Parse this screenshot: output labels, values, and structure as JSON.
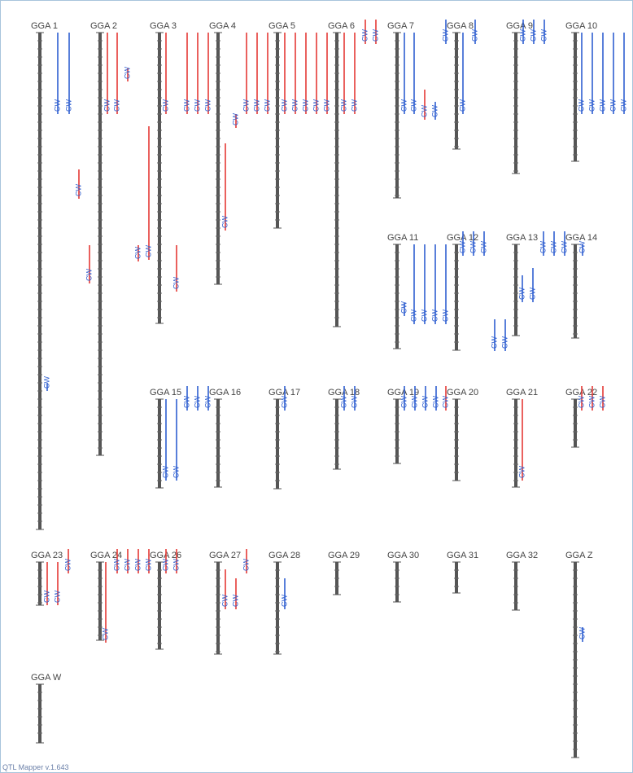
{
  "colors": {
    "qtl_red": "#e53935",
    "qtl_blue": "#2f5fd0",
    "chromosome": "#555555",
    "label": "#444444",
    "footer": "#6a7fa8"
  },
  "chromosomes": [
    {
      "label": "GGA 1"
    },
    {
      "label": "GGA 2"
    },
    {
      "label": "GGA 3"
    },
    {
      "label": "GGA 4"
    },
    {
      "label": "GGA 5"
    },
    {
      "label": "GGA 6"
    },
    {
      "label": "GGA 7"
    },
    {
      "label": "GGA 8"
    },
    {
      "label": "GGA 9"
    },
    {
      "label": "GGA 10"
    },
    {
      "label": "GGA 11"
    },
    {
      "label": "GGA 12"
    },
    {
      "label": "GGA 13"
    },
    {
      "label": "GGA 14"
    },
    {
      "label": "GGA 15"
    },
    {
      "label": "GGA 16"
    },
    {
      "label": "GGA 17"
    },
    {
      "label": "GGA 18"
    },
    {
      "label": "GGA 19"
    },
    {
      "label": "GGA 20"
    },
    {
      "label": "GGA 21"
    },
    {
      "label": "GGA 22"
    },
    {
      "label": "GGA 23"
    },
    {
      "label": "GGA 24"
    },
    {
      "label": "GGA 26"
    },
    {
      "label": "GGA 27"
    },
    {
      "label": "GGA 28"
    },
    {
      "label": "GGA 29"
    },
    {
      "label": "GGA 30"
    },
    {
      "label": "GGA 31"
    },
    {
      "label": "GGA 32"
    },
    {
      "label": "GGA Z"
    },
    {
      "label": "GGA W"
    }
  ],
  "qtl_label": "CW",
  "footer": "QTL Mapper v.1.643"
}
